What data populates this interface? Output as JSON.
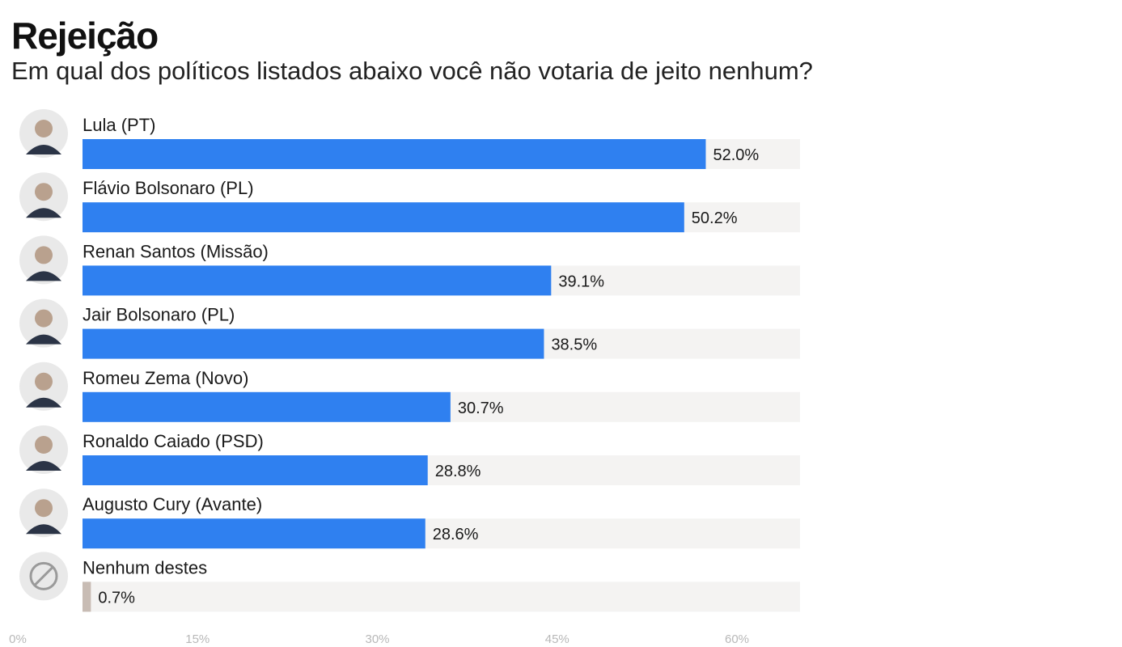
{
  "header": {
    "title": "Rejeição",
    "subtitle": "Em qual dos políticos listados abaixo você não votaria de jeito nenhum?"
  },
  "colors": {
    "bar": "#2f80f0",
    "bar_none": "#c8bcb4",
    "track": "#f4f3f2",
    "avatar_bg": "#e9e9e9",
    "none_icon": "#9a9a9a"
  },
  "chart_data": {
    "type": "bar",
    "orientation": "horizontal",
    "categories": [
      "Lula (PT)",
      "Flávio Bolsonaro (PL)",
      "Renan Santos (Missão)",
      "Jair Bolsonaro (PL)",
      "Romeu Zema (Novo)",
      "Ronaldo Caiado (PSD)",
      "Augusto Cury (Avante)",
      "Nenhum destes"
    ],
    "values": [
      52.0,
      50.2,
      39.1,
      38.5,
      30.7,
      28.8,
      28.6,
      0.7
    ],
    "value_labels": [
      "52.0%",
      "50.2%",
      "39.1%",
      "38.5%",
      "30.7%",
      "28.8%",
      "28.6%",
      "0.7%"
    ],
    "avatars": [
      "person-photo",
      "person-photo",
      "person-photo",
      "person-photo",
      "person-photo",
      "person-photo",
      "person-photo",
      "none-icon"
    ],
    "xlim": [
      0,
      60
    ],
    "ticks": [
      0,
      15,
      30,
      45,
      60
    ],
    "tick_labels": [
      "0%",
      "15%",
      "30%",
      "45%",
      "60%"
    ],
    "grid": false,
    "legend": "none"
  }
}
